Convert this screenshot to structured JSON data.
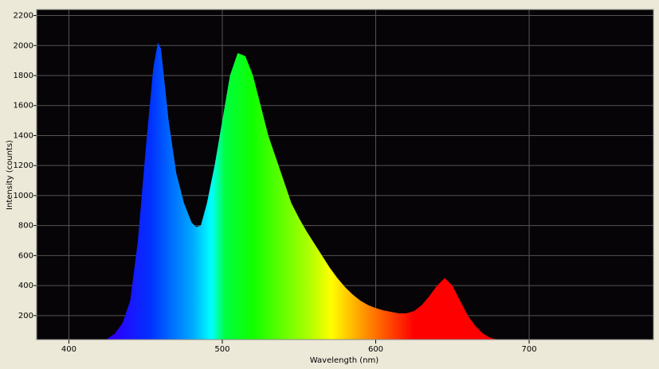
{
  "chart_data": {
    "type": "area",
    "x": [
      425,
      430,
      435,
      440,
      445,
      450,
      455,
      458,
      460,
      465,
      470,
      475,
      480,
      483,
      486,
      490,
      495,
      500,
      505,
      510,
      515,
      520,
      525,
      530,
      535,
      540,
      545,
      550,
      555,
      560,
      565,
      570,
      575,
      580,
      585,
      590,
      595,
      600,
      605,
      610,
      615,
      620,
      625,
      630,
      635,
      640,
      645,
      650,
      655,
      660,
      665,
      670,
      675,
      680
    ],
    "values": [
      45,
      80,
      150,
      300,
      700,
      1300,
      1850,
      2020,
      1980,
      1500,
      1150,
      950,
      820,
      790,
      800,
      950,
      1200,
      1500,
      1800,
      1950,
      1930,
      1800,
      1600,
      1400,
      1250,
      1100,
      950,
      850,
      760,
      680,
      600,
      520,
      450,
      390,
      340,
      300,
      270,
      250,
      235,
      225,
      215,
      215,
      230,
      270,
      330,
      400,
      450,
      400,
      300,
      200,
      130,
      80,
      50,
      40
    ],
    "xlim": [
      379,
      781
    ],
    "ylim": [
      40,
      2240
    ],
    "xticks": [
      400,
      500,
      600,
      700
    ],
    "yticks": [
      200,
      400,
      600,
      800,
      1000,
      1200,
      1400,
      1600,
      1800,
      2000,
      2200
    ],
    "xlabel": "Wavelength (nm)",
    "ylabel": "Intensity (counts)",
    "grid": true
  }
}
